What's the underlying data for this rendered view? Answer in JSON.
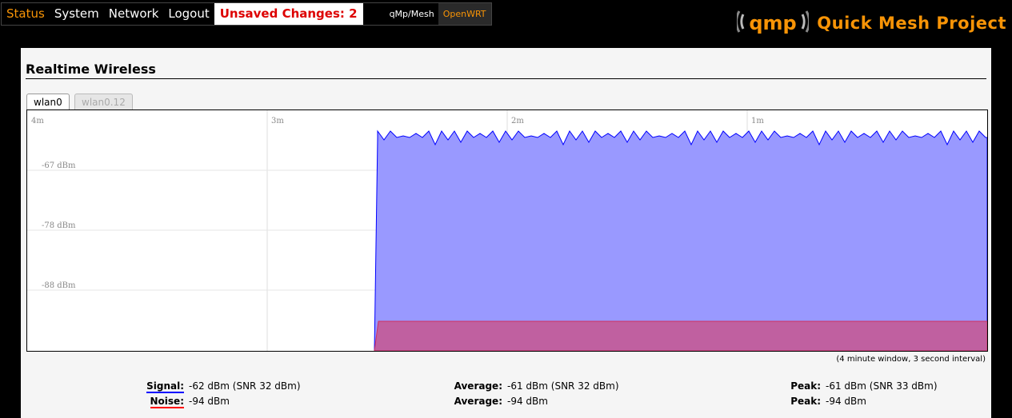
{
  "nav": {
    "items": [
      "Status",
      "System",
      "Network",
      "Logout"
    ],
    "unsaved": "Unsaved Changes: 2",
    "theme_qmp": "qMp/Mesh",
    "theme_openwrt": "OpenWRT"
  },
  "brand": {
    "logo_text": "qmp",
    "title": "Quick Mesh Project"
  },
  "page": {
    "title": "Realtime Wireless",
    "tabs": [
      "wlan0",
      "wlan0.12"
    ],
    "window_note": "(4 minute window, 3 second interval)"
  },
  "chart_data": {
    "type": "area",
    "x_labels": [
      "4m",
      "3m",
      "2m",
      "1m"
    ],
    "y_ticks": [
      "-67 dBm",
      "-78 dBm",
      "-88 dBm"
    ],
    "series": [
      {
        "name": "Signal",
        "color": "#0000ff",
        "fill": "#9999ff",
        "values": [
          -62
        ]
      },
      {
        "name": "Noise",
        "color": "#ff0000",
        "fill": "#c060a0",
        "values": [
          -94
        ]
      }
    ]
  },
  "stats": {
    "signal_label": "Signal:",
    "signal_value": "-62 dBm (SNR 32 dBm)",
    "noise_label": "Noise:",
    "noise_value": "-94 dBm",
    "avg_label": "Average:",
    "avg_signal": "-61 dBm (SNR 32 dBm)",
    "avg_noise": "-94 dBm",
    "peak_label": "Peak:",
    "peak_signal": "-61 dBm (SNR 33 dBm)",
    "peak_noise": "-94 dBm"
  }
}
